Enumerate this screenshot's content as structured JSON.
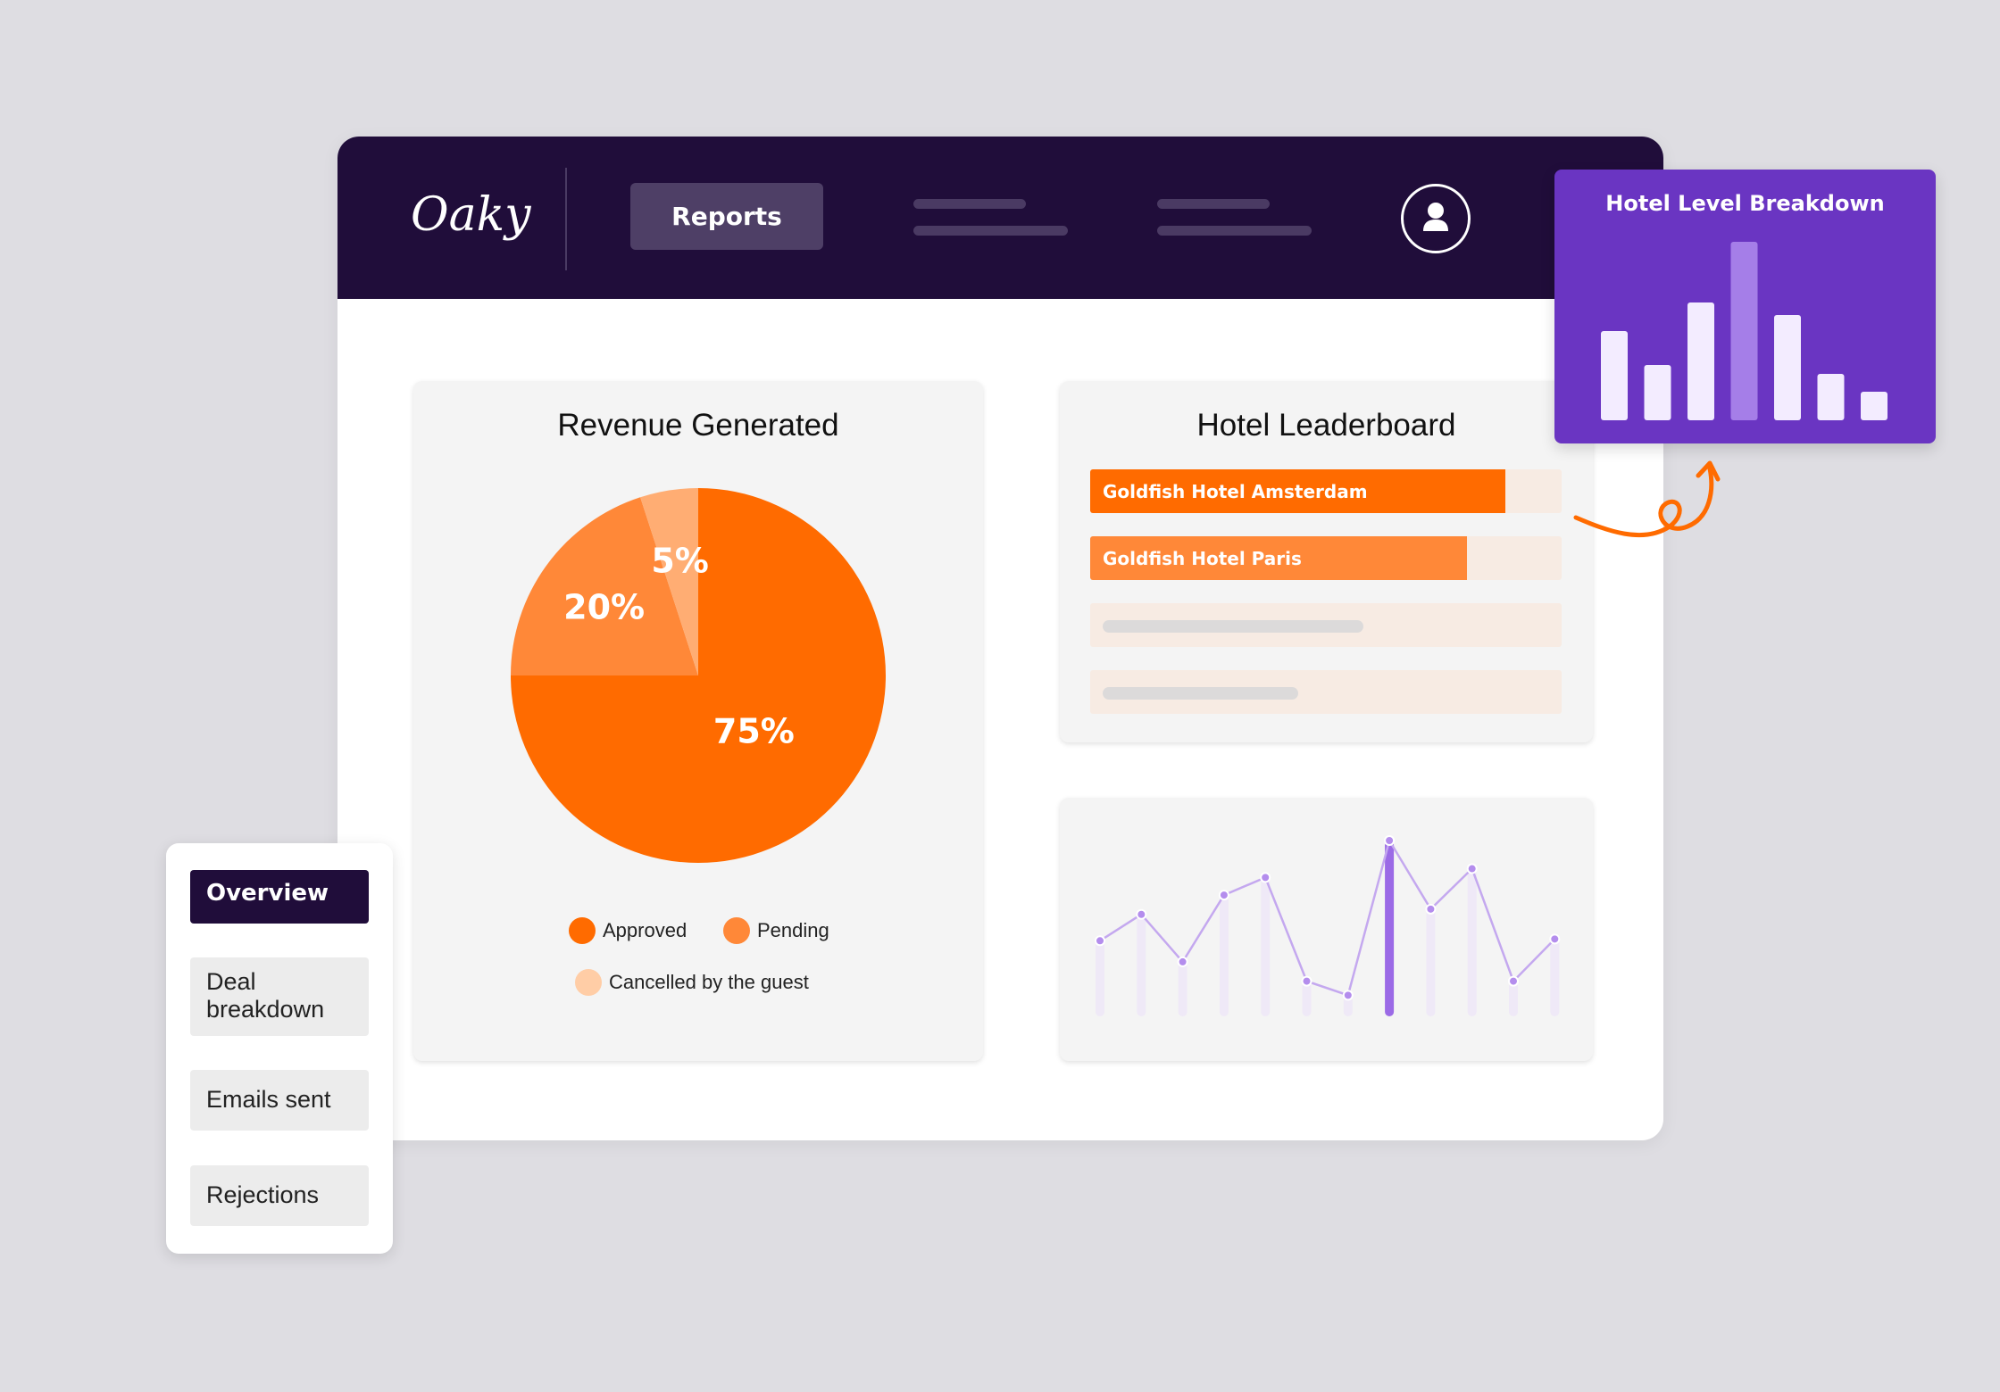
{
  "app": {
    "logo": "Oaky"
  },
  "nav": {
    "reports_label": "Reports"
  },
  "revenue": {
    "title": "Revenue Generated",
    "legend": [
      "Approved",
      "Pending",
      "Cancelled by the guest"
    ]
  },
  "leaderboard": {
    "title": "Hotel Leaderboard",
    "rows": [
      {
        "name": "Goldfish Hotel Amsterdam"
      },
      {
        "name": "Goldfish Hotel Paris"
      }
    ]
  },
  "hotel_breakdown": {
    "title": "Hotel Level Breakdown"
  },
  "sidebar": {
    "items": [
      {
        "label": "Overview"
      },
      {
        "label": "Deal breakdown"
      },
      {
        "label": "Emails sent"
      },
      {
        "label": "Rejections"
      }
    ]
  },
  "colors": {
    "nav_bg": "#200d3a",
    "approved": "#ff6b00",
    "pending": "#ff8838",
    "cancelled": "#ffad73",
    "purple": "#6a35c2",
    "purple_light": "#a57ee8"
  },
  "icons": {
    "avatar": "user-icon"
  },
  "chart_data": [
    {
      "type": "pie",
      "title": "Revenue Generated",
      "categories": [
        "Approved",
        "Pending",
        "Cancelled by the guest"
      ],
      "values": [
        75,
        20,
        5
      ],
      "labels": [
        "75%",
        "20%",
        "5%"
      ]
    },
    {
      "type": "bar",
      "title": "Goldfish Hotel leaderboard",
      "categories": [
        "Goldfish Hotel Amsterdam",
        "Goldfish Hotel Paris"
      ],
      "values": [
        0.88,
        0.8
      ]
    },
    {
      "type": "bar",
      "title": "Hotel Level Breakdown",
      "values": [
        0.5,
        0.31,
        0.66,
        1.0,
        0.59,
        0.26,
        0.16
      ],
      "highlight_index": 3
    },
    {
      "type": "line",
      "values": [
        0.43,
        0.58,
        0.31,
        0.69,
        0.79,
        0.2,
        0.12,
        1.0,
        0.61,
        0.84,
        0.2,
        0.44
      ],
      "highlight_index": 7
    }
  ]
}
